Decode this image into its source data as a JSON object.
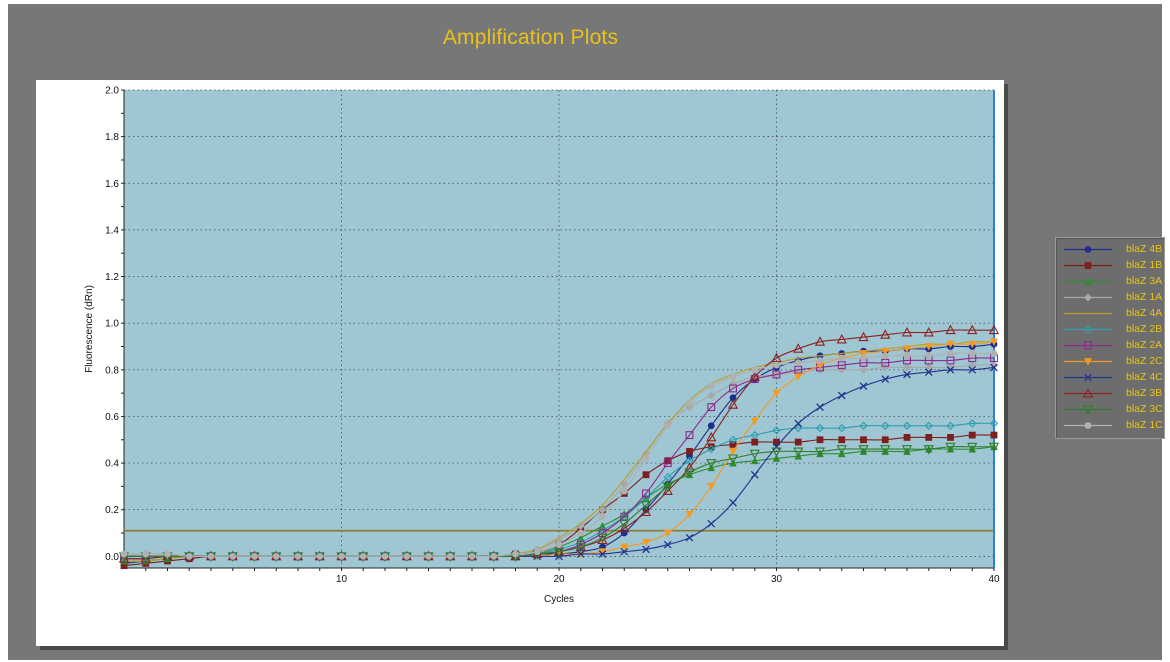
{
  "window": {
    "title": "Amplification Plots"
  },
  "chart_data": {
    "type": "line",
    "title": "Amplification Plots",
    "xlabel": "Cycles",
    "ylabel": "Fluorescence (dRn)",
    "xlim": [
      0,
      40
    ],
    "ylim": [
      -0.05,
      2.0
    ],
    "xticks": [
      "10",
      "20",
      "30",
      "40"
    ],
    "yticks": [
      "0.0",
      "0.2",
      "0.4",
      "0.6",
      "0.8",
      "1.0",
      "1.2",
      "1.4",
      "1.6",
      "1.8",
      "2.0"
    ],
    "grid": true,
    "legend_placement": "right",
    "plot_background": "#9fc6d3",
    "threshold": 0.11,
    "threshold_color": "#8a7a2a",
    "series": [
      {
        "name": "blaZ 4B",
        "color": "#1f2d8c",
        "marker": "circle",
        "x": [
          0,
          1,
          2,
          3,
          4,
          5,
          6,
          7,
          8,
          9,
          10,
          11,
          12,
          13,
          14,
          15,
          16,
          17,
          18,
          19,
          20,
          21,
          22,
          23,
          24,
          25,
          26,
          27,
          28,
          29,
          30,
          31,
          32,
          33,
          34,
          35,
          36,
          37,
          38,
          39,
          40
        ],
        "values": [
          -0.03,
          -0.02,
          -0.01,
          0,
          0,
          0,
          0,
          0,
          0,
          0,
          0,
          0,
          0,
          0,
          0,
          0,
          0,
          0,
          0,
          0.01,
          0.01,
          0.02,
          0.04,
          0.1,
          0.2,
          0.31,
          0.43,
          0.56,
          0.68,
          0.76,
          0.81,
          0.84,
          0.86,
          0.87,
          0.88,
          0.88,
          0.89,
          0.89,
          0.9,
          0.9,
          0.91
        ]
      },
      {
        "name": "blaZ 1B",
        "color": "#7b1f1f",
        "marker": "square",
        "x": [
          0,
          1,
          2,
          3,
          4,
          5,
          6,
          7,
          8,
          9,
          10,
          11,
          12,
          13,
          14,
          15,
          16,
          17,
          18,
          19,
          20,
          21,
          22,
          23,
          24,
          25,
          26,
          27,
          28,
          29,
          30,
          31,
          32,
          33,
          34,
          35,
          36,
          37,
          38,
          39,
          40
        ],
        "values": [
          -0.04,
          -0.03,
          -0.02,
          -0.01,
          0,
          0,
          0,
          0,
          0,
          0,
          0,
          0,
          0,
          0,
          0,
          0,
          0,
          0,
          0.01,
          0.02,
          0.05,
          0.12,
          0.2,
          0.27,
          0.35,
          0.41,
          0.45,
          0.47,
          0.48,
          0.49,
          0.49,
          0.49,
          0.5,
          0.5,
          0.5,
          0.5,
          0.51,
          0.51,
          0.51,
          0.52,
          0.52
        ]
      },
      {
        "name": "blaZ 3A",
        "color": "#2e8b2e",
        "marker": "triangle",
        "x": [
          0,
          1,
          2,
          3,
          4,
          5,
          6,
          7,
          8,
          9,
          10,
          11,
          12,
          13,
          14,
          15,
          16,
          17,
          18,
          19,
          20,
          21,
          22,
          23,
          24,
          25,
          26,
          27,
          28,
          29,
          30,
          31,
          32,
          33,
          34,
          35,
          36,
          37,
          38,
          39,
          40
        ],
        "values": [
          -0.02,
          -0.02,
          -0.01,
          0,
          0,
          0,
          0,
          0,
          0,
          0,
          0,
          0,
          0,
          0,
          0,
          0,
          0,
          0,
          0,
          0.01,
          0.04,
          0.08,
          0.13,
          0.18,
          0.25,
          0.31,
          0.35,
          0.38,
          0.4,
          0.41,
          0.42,
          0.43,
          0.44,
          0.44,
          0.45,
          0.45,
          0.45,
          0.46,
          0.46,
          0.46,
          0.47
        ]
      },
      {
        "name": "blaZ 1A",
        "color": "#a8a8a8",
        "marker": "diamond",
        "x": [
          0,
          1,
          2,
          3,
          4,
          5,
          6,
          7,
          8,
          9,
          10,
          11,
          12,
          13,
          14,
          15,
          16,
          17,
          18,
          19,
          20,
          21,
          22,
          23,
          24,
          25,
          26,
          27,
          28,
          29,
          30,
          31,
          32,
          33,
          34,
          35,
          36,
          37,
          38,
          39,
          40
        ],
        "values": [
          0.0,
          0.01,
          0.01,
          0,
          0,
          0,
          0,
          0,
          0,
          0,
          0,
          0,
          0,
          0,
          0,
          0,
          0,
          0,
          0.01,
          0.03,
          0.07,
          0.13,
          0.2,
          0.31,
          0.44,
          0.57,
          0.64,
          0.69,
          0.74,
          0.77,
          0.78,
          0.79,
          0.8,
          0.8,
          0.8,
          0.81,
          0.81,
          0.81,
          0.81,
          0.82,
          0.82
        ]
      },
      {
        "name": "blaZ 4A",
        "color": "#b8a12a",
        "marker": "none",
        "x": [
          0,
          1,
          2,
          3,
          4,
          5,
          6,
          7,
          8,
          9,
          10,
          11,
          12,
          13,
          14,
          15,
          16,
          17,
          18,
          19,
          20,
          21,
          22,
          23,
          24,
          25,
          26,
          27,
          28,
          29,
          30,
          31,
          32,
          33,
          34,
          35,
          36,
          37,
          38,
          39,
          40
        ],
        "values": [
          -0.02,
          -0.02,
          -0.01,
          0,
          0,
          0,
          0,
          0,
          0,
          0,
          0,
          0,
          0,
          0,
          0,
          0,
          0,
          0,
          0.01,
          0.03,
          0.08,
          0.14,
          0.22,
          0.33,
          0.45,
          0.57,
          0.67,
          0.74,
          0.78,
          0.81,
          0.83,
          0.85,
          0.86,
          0.87,
          0.88,
          0.89,
          0.9,
          0.91,
          0.91,
          0.92,
          0.92
        ]
      },
      {
        "name": "blaZ 2B",
        "color": "#2e9fb0",
        "marker": "diamond-open",
        "x": [
          0,
          1,
          2,
          3,
          4,
          5,
          6,
          7,
          8,
          9,
          10,
          11,
          12,
          13,
          14,
          15,
          16,
          17,
          18,
          19,
          20,
          21,
          22,
          23,
          24,
          25,
          26,
          27,
          28,
          29,
          30,
          31,
          32,
          33,
          34,
          35,
          36,
          37,
          38,
          39,
          40
        ],
        "values": [
          -0.01,
          -0.01,
          0,
          0,
          0,
          0,
          0,
          0,
          0,
          0,
          0,
          0,
          0,
          0,
          0,
          0,
          0,
          0,
          0,
          0.01,
          0.03,
          0.06,
          0.11,
          0.17,
          0.25,
          0.34,
          0.41,
          0.46,
          0.5,
          0.52,
          0.54,
          0.55,
          0.55,
          0.55,
          0.56,
          0.56,
          0.56,
          0.56,
          0.56,
          0.57,
          0.57
        ]
      },
      {
        "name": "blaZ 2A",
        "color": "#8c2a8c",
        "marker": "square-open",
        "x": [
          0,
          1,
          2,
          3,
          4,
          5,
          6,
          7,
          8,
          9,
          10,
          11,
          12,
          13,
          14,
          15,
          16,
          17,
          18,
          19,
          20,
          21,
          22,
          23,
          24,
          25,
          26,
          27,
          28,
          29,
          30,
          31,
          32,
          33,
          34,
          35,
          36,
          37,
          38,
          39,
          40
        ],
        "values": [
          -0.01,
          -0.01,
          0,
          0,
          0,
          0,
          0,
          0,
          0,
          0,
          0,
          0,
          0,
          0,
          0,
          0,
          0,
          0,
          0,
          0.01,
          0.02,
          0.05,
          0.1,
          0.17,
          0.27,
          0.4,
          0.52,
          0.64,
          0.72,
          0.76,
          0.78,
          0.8,
          0.81,
          0.82,
          0.83,
          0.83,
          0.84,
          0.84,
          0.84,
          0.85,
          0.85
        ]
      },
      {
        "name": "blaZ 2C",
        "color": "#f59a1e",
        "marker": "triangle-down",
        "x": [
          0,
          1,
          2,
          3,
          4,
          5,
          6,
          7,
          8,
          9,
          10,
          11,
          12,
          13,
          14,
          15,
          16,
          17,
          18,
          19,
          20,
          21,
          22,
          23,
          24,
          25,
          26,
          27,
          28,
          29,
          30,
          31,
          32,
          33,
          34,
          35,
          36,
          37,
          38,
          39,
          40
        ],
        "values": [
          0,
          0,
          0,
          0,
          0,
          0,
          0,
          0,
          0,
          0,
          0,
          0,
          0,
          0,
          0,
          0,
          0,
          0,
          0,
          0,
          0.01,
          0.01,
          0.02,
          0.04,
          0.06,
          0.1,
          0.18,
          0.3,
          0.45,
          0.58,
          0.7,
          0.77,
          0.82,
          0.85,
          0.87,
          0.88,
          0.89,
          0.9,
          0.91,
          0.91,
          0.92
        ]
      },
      {
        "name": "blaZ 4C",
        "color": "#22338c",
        "marker": "x",
        "x": [
          0,
          1,
          2,
          3,
          4,
          5,
          6,
          7,
          8,
          9,
          10,
          11,
          12,
          13,
          14,
          15,
          16,
          17,
          18,
          19,
          20,
          21,
          22,
          23,
          24,
          25,
          26,
          27,
          28,
          29,
          30,
          31,
          32,
          33,
          34,
          35,
          36,
          37,
          38,
          39,
          40
        ],
        "values": [
          0,
          0,
          0,
          0,
          0,
          0,
          0,
          0,
          0,
          0,
          0,
          0,
          0,
          0,
          0,
          0,
          0,
          0,
          0,
          0,
          0,
          0.01,
          0.01,
          0.02,
          0.03,
          0.05,
          0.08,
          0.14,
          0.23,
          0.35,
          0.47,
          0.57,
          0.64,
          0.69,
          0.73,
          0.76,
          0.78,
          0.79,
          0.8,
          0.8,
          0.81
        ]
      },
      {
        "name": "blaZ 3B",
        "color": "#8c2222",
        "marker": "triangle-open",
        "x": [
          0,
          1,
          2,
          3,
          4,
          5,
          6,
          7,
          8,
          9,
          10,
          11,
          12,
          13,
          14,
          15,
          16,
          17,
          18,
          19,
          20,
          21,
          22,
          23,
          24,
          25,
          26,
          27,
          28,
          29,
          30,
          31,
          32,
          33,
          34,
          35,
          36,
          37,
          38,
          39,
          40
        ],
        "values": [
          -0.01,
          -0.01,
          0,
          0,
          0,
          0,
          0,
          0,
          0,
          0,
          0,
          0,
          0,
          0,
          0,
          0,
          0,
          0,
          0,
          0.01,
          0.02,
          0.04,
          0.07,
          0.12,
          0.19,
          0.28,
          0.38,
          0.51,
          0.65,
          0.77,
          0.85,
          0.89,
          0.92,
          0.93,
          0.94,
          0.95,
          0.96,
          0.96,
          0.97,
          0.97,
          0.97
        ]
      },
      {
        "name": "blaZ 3C",
        "color": "#2e7d2e",
        "marker": "triangle-down-open",
        "x": [
          0,
          1,
          2,
          3,
          4,
          5,
          6,
          7,
          8,
          9,
          10,
          11,
          12,
          13,
          14,
          15,
          16,
          17,
          18,
          19,
          20,
          21,
          22,
          23,
          24,
          25,
          26,
          27,
          28,
          29,
          30,
          31,
          32,
          33,
          34,
          35,
          36,
          37,
          38,
          39,
          40
        ],
        "values": [
          0,
          0,
          0,
          0,
          0,
          0,
          0,
          0,
          0,
          0,
          0,
          0,
          0,
          0,
          0,
          0,
          0,
          0,
          0,
          0.01,
          0.02,
          0.04,
          0.08,
          0.14,
          0.22,
          0.3,
          0.36,
          0.4,
          0.42,
          0.44,
          0.45,
          0.45,
          0.45,
          0.46,
          0.46,
          0.46,
          0.46,
          0.46,
          0.47,
          0.47,
          0.47
        ]
      },
      {
        "name": "blaZ 1C",
        "color": "#b0b0b0",
        "marker": "circle",
        "x": [
          0,
          1,
          2,
          3,
          4,
          5,
          6,
          7,
          8,
          9,
          10,
          11,
          12,
          13,
          14,
          15,
          16,
          17,
          18,
          19,
          20,
          21,
          22,
          23,
          24,
          25,
          26,
          27,
          28,
          29,
          30,
          31,
          32,
          33,
          34,
          35,
          36,
          37,
          38,
          39,
          40
        ],
        "values": [
          0.01,
          0.01,
          0.01,
          0,
          0,
          0,
          0,
          0,
          0,
          0,
          0,
          0,
          0,
          0,
          0,
          0,
          0,
          0,
          0.01,
          0.02,
          0.05,
          0.1,
          0.17,
          0.28,
          0.42,
          0.56,
          0.66,
          0.73,
          0.77,
          0.8,
          0.82,
          0.83,
          0.84,
          0.85,
          0.85,
          0.86,
          0.86,
          0.86,
          0.87,
          0.87,
          0.87
        ]
      }
    ]
  }
}
